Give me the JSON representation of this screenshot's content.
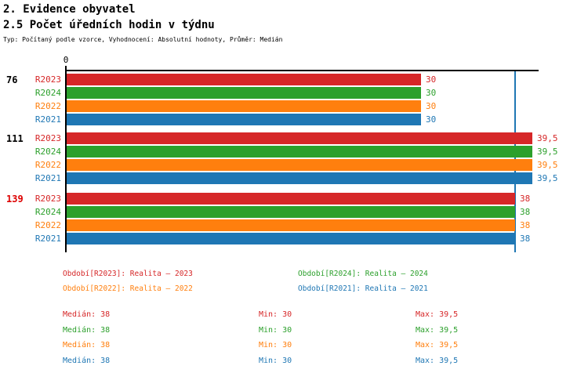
{
  "header": {
    "title": "2. Evidence obyvatel",
    "subtitle": "2.5 Počet úředních hodin v týdnu",
    "meta": "Typ: Počítaný podle vzorce, Vyhodnocení: Absolutní hodnoty, Průměr: Medián"
  },
  "colors": {
    "r2023": "#d62728",
    "r2024": "#2ca02c",
    "r2022": "#ff7f0e",
    "r2021": "#1f77b4",
    "axis": "#000000",
    "median_line": "#1f77b4",
    "highlighted_group": "#dd0000"
  },
  "chart_data": {
    "type": "bar",
    "orientation": "horizontal",
    "title": "2.5 Počet úředních hodin v týdnu",
    "value_axis": {
      "zero_label": "0",
      "min": 0,
      "median_reference": 38,
      "grid": "off"
    },
    "series": [
      "R2023",
      "R2024",
      "R2022",
      "R2021"
    ],
    "groups": [
      {
        "label": "76",
        "label_color": "#000000",
        "bars": [
          {
            "series": "R2023",
            "value": 30,
            "display": "30",
            "color": "#d62728"
          },
          {
            "series": "R2024",
            "value": 30,
            "display": "30",
            "color": "#2ca02c"
          },
          {
            "series": "R2022",
            "value": 30,
            "display": "30",
            "color": "#ff7f0e"
          },
          {
            "series": "R2021",
            "value": 30,
            "display": "30",
            "color": "#1f77b4"
          }
        ]
      },
      {
        "label": "111",
        "label_color": "#000000",
        "bars": [
          {
            "series": "R2023",
            "value": 39.5,
            "display": "39,5",
            "color": "#d62728"
          },
          {
            "series": "R2024",
            "value": 39.5,
            "display": "39,5",
            "color": "#2ca02c"
          },
          {
            "series": "R2022",
            "value": 39.5,
            "display": "39,5",
            "color": "#ff7f0e"
          },
          {
            "series": "R2021",
            "value": 39.5,
            "display": "39,5",
            "color": "#1f77b4"
          }
        ]
      },
      {
        "label": "139",
        "label_color": "#dd0000",
        "bars": [
          {
            "series": "R2023",
            "value": 38,
            "display": "38",
            "color": "#d62728"
          },
          {
            "series": "R2024",
            "value": 38,
            "display": "38",
            "color": "#2ca02c"
          },
          {
            "series": "R2022",
            "value": 38,
            "display": "38",
            "color": "#ff7f0e"
          },
          {
            "series": "R2021",
            "value": 38,
            "display": "38",
            "color": "#1f77b4"
          }
        ]
      }
    ]
  },
  "legend": {
    "items": [
      {
        "label": "Období[R2023]: Realita – 2023",
        "color": "#d62728"
      },
      {
        "label": "Období[R2024]: Realita – 2024",
        "color": "#2ca02c"
      },
      {
        "label": "Období[R2022]: Realita – 2022",
        "color": "#ff7f0e"
      },
      {
        "label": "Období[R2021]: Realita – 2021",
        "color": "#1f77b4"
      }
    ]
  },
  "stats": {
    "rows": [
      {
        "color": "#d62728",
        "median": "Medián: 38",
        "min": "Min: 30",
        "max": "Max: 39,5"
      },
      {
        "color": "#2ca02c",
        "median": "Medián: 38",
        "min": "Min: 30",
        "max": "Max: 39,5"
      },
      {
        "color": "#ff7f0e",
        "median": "Medián: 38",
        "min": "Min: 30",
        "max": "Max: 39,5"
      },
      {
        "color": "#1f77b4",
        "median": "Medián: 38",
        "min": "Min: 30",
        "max": "Max: 39,5"
      }
    ]
  }
}
